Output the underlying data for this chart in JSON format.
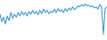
{
  "values": [
    55,
    42,
    50,
    38,
    52,
    44,
    58,
    48,
    55,
    50,
    58,
    52,
    60,
    54,
    58,
    52,
    60,
    55,
    62,
    56,
    60,
    54,
    62,
    56,
    64,
    58,
    62,
    56,
    60,
    58,
    64,
    58,
    65,
    60,
    63,
    58,
    65,
    60,
    66,
    62,
    68,
    63,
    66,
    70,
    68,
    72,
    69,
    73,
    70,
    71,
    68,
    70,
    66,
    68,
    64,
    72,
    68,
    20,
    65,
    68
  ],
  "line_color": "#2e8ec7",
  "background_color": "#ffffff",
  "ylim_min": 10,
  "ylim_max": 80,
  "linewidth": 0.7
}
